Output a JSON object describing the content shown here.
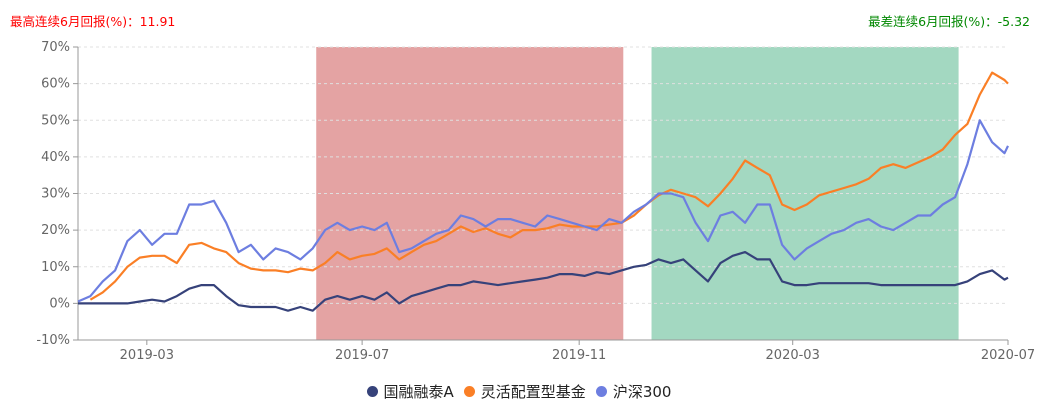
{
  "header": {
    "best_label": "最高连续6月回报(%)：",
    "best_value": "11.91",
    "worst_label": "最差连续6月回报(%)：",
    "worst_value": "-5.32",
    "best_color": "#ff0000",
    "worst_color": "#008800"
  },
  "chart_data": {
    "type": "line",
    "ylim": [
      -10,
      70
    ],
    "y_ticks": [
      "-10%",
      "0%",
      "10%",
      "20%",
      "30%",
      "40%",
      "50%",
      "60%",
      "70%"
    ],
    "y_tick_values": [
      -10,
      0,
      10,
      20,
      30,
      40,
      50,
      60,
      70
    ],
    "x_ticks": [
      "2019-03",
      "2019-07",
      "2019-11",
      "2020-03",
      "2020-07"
    ],
    "x_tick_dates": [
      "2019-03-01",
      "2019-07-01",
      "2019-11-01",
      "2020-03-01",
      "2020-07-01"
    ],
    "xlim": [
      "2019-01-21",
      "2020-07-01"
    ],
    "grid": "horizontal dashed",
    "legend_position": "bottom",
    "shaded_periods": [
      {
        "start": "2019-06-05",
        "end": "2019-11-26",
        "color": "#e4a3a3"
      },
      {
        "start": "2019-12-12",
        "end": "2020-06-03",
        "color": "#a3d8c1"
      }
    ],
    "x": [
      "2019-01-21",
      "2019-01-28",
      "2019-02-04",
      "2019-02-11",
      "2019-02-18",
      "2019-02-25",
      "2019-03-04",
      "2019-03-11",
      "2019-03-18",
      "2019-03-25",
      "2019-04-01",
      "2019-04-08",
      "2019-04-15",
      "2019-04-22",
      "2019-04-29",
      "2019-05-06",
      "2019-05-13",
      "2019-05-20",
      "2019-05-27",
      "2019-06-03",
      "2019-06-10",
      "2019-06-17",
      "2019-06-24",
      "2019-07-01",
      "2019-07-08",
      "2019-07-15",
      "2019-07-22",
      "2019-07-29",
      "2019-08-05",
      "2019-08-12",
      "2019-08-19",
      "2019-08-26",
      "2019-09-02",
      "2019-09-09",
      "2019-09-16",
      "2019-09-23",
      "2019-09-30",
      "2019-10-07",
      "2019-10-14",
      "2019-10-21",
      "2019-10-28",
      "2019-11-04",
      "2019-11-11",
      "2019-11-18",
      "2019-11-25",
      "2019-12-02",
      "2019-12-09",
      "2019-12-16",
      "2019-12-23",
      "2019-12-30",
      "2020-01-06",
      "2020-01-13",
      "2020-01-20",
      "2020-01-27",
      "2020-02-03",
      "2020-02-10",
      "2020-02-17",
      "2020-02-24",
      "2020-03-02",
      "2020-03-09",
      "2020-03-16",
      "2020-03-23",
      "2020-03-30",
      "2020-04-06",
      "2020-04-13",
      "2020-04-20",
      "2020-04-27",
      "2020-05-04",
      "2020-05-11",
      "2020-05-18",
      "2020-05-25",
      "2020-06-01",
      "2020-06-08",
      "2020-06-15",
      "2020-06-22",
      "2020-06-29",
      "2020-07-01"
    ],
    "series": [
      {
        "name": "国融融泰A",
        "color": "#36427a",
        "values": [
          0,
          0,
          0,
          0,
          0,
          0.5,
          1,
          0.5,
          2,
          4,
          5,
          5,
          2,
          -0.5,
          -1,
          -1,
          -1,
          -2,
          -1,
          -2,
          1,
          2,
          1,
          2,
          1,
          3,
          0,
          2,
          3,
          4,
          5,
          5,
          6,
          5.5,
          5,
          5.5,
          6,
          6.5,
          7,
          8,
          8,
          7.5,
          8.5,
          8,
          9,
          10,
          10.5,
          12,
          11,
          12,
          9,
          6,
          11,
          13,
          14,
          12,
          12,
          6,
          5,
          5,
          5.5,
          5.5,
          5.5,
          5.5,
          5.5,
          5,
          5,
          5,
          5,
          5,
          5,
          5,
          6,
          8,
          9,
          6.5,
          7
        ]
      },
      {
        "name": "灵活配置型基金",
        "color": "#fa7f26",
        "values": [
          null,
          1,
          3,
          6,
          10,
          12.5,
          13,
          13,
          11,
          16,
          16.5,
          15,
          14,
          11,
          9.5,
          9,
          9,
          8.5,
          9.5,
          9,
          11,
          14,
          12,
          13,
          13.5,
          15,
          12,
          14,
          16,
          17,
          19,
          21,
          19.5,
          20.5,
          19,
          18,
          20,
          20,
          20.5,
          21.5,
          21,
          21,
          21,
          21.5,
          22,
          24,
          27,
          29.5,
          31,
          30,
          29,
          26.5,
          30,
          34,
          39,
          37,
          35,
          27,
          25.5,
          27,
          29.5,
          30.5,
          31.5,
          32.5,
          34,
          37,
          38,
          37,
          38.5,
          40,
          42,
          46,
          49,
          57,
          63,
          61,
          60
        ]
      },
      {
        "name": "沪深300",
        "color": "#6d7ee0",
        "values": [
          0.5,
          2,
          6,
          9,
          17,
          20,
          16,
          19,
          19,
          27,
          27,
          28,
          22,
          14,
          16,
          12,
          15,
          14,
          12,
          15,
          20,
          22,
          20,
          21,
          20,
          22,
          14,
          15,
          17,
          19,
          20,
          24,
          23,
          21,
          23,
          23,
          22,
          21,
          24,
          23,
          22,
          21,
          20,
          23,
          22,
          25,
          27,
          30,
          30,
          29,
          22,
          17,
          24,
          25,
          22,
          27,
          27,
          16,
          12,
          15,
          17,
          19,
          20,
          22,
          23,
          21,
          20,
          22,
          24,
          24,
          27,
          29,
          38,
          50,
          44,
          41,
          43
        ]
      }
    ]
  }
}
